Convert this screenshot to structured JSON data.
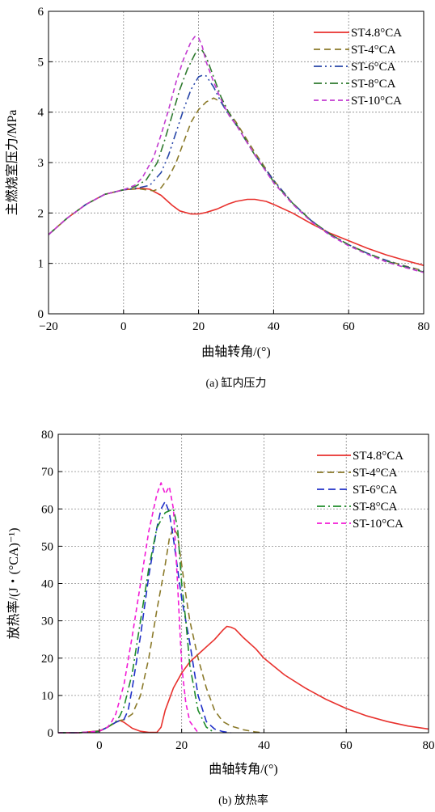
{
  "chart_data": [
    {
      "type": "line",
      "caption": "(a) 缸内压力",
      "xlabel": "曲轴转角/(°)",
      "ylabel": "主燃烧室压力/MPa",
      "xlim": [
        -20,
        80
      ],
      "ylim": [
        0,
        6
      ],
      "xticks": [
        "−20",
        "0",
        "20",
        "40",
        "60",
        "80"
      ],
      "yticks": [
        "0",
        "1",
        "2",
        "3",
        "4",
        "5",
        "6"
      ],
      "grid": true,
      "legend": "top-right",
      "series": [
        {
          "name": "ST4.8°CA",
          "color": "#e8312d",
          "dash": "",
          "x": [
            -20,
            -15,
            -10,
            -5,
            0,
            3,
            5,
            7,
            10,
            13,
            15,
            18,
            20,
            22,
            25,
            28,
            30,
            33,
            35,
            38,
            40,
            45,
            50,
            55,
            60,
            65,
            70,
            75,
            80
          ],
          "y": [
            1.57,
            1.9,
            2.17,
            2.37,
            2.46,
            2.48,
            2.49,
            2.47,
            2.35,
            2.15,
            2.04,
            1.98,
            1.98,
            2.01,
            2.08,
            2.18,
            2.23,
            2.27,
            2.27,
            2.23,
            2.17,
            2.0,
            1.79,
            1.6,
            1.45,
            1.3,
            1.17,
            1.06,
            0.96
          ]
        },
        {
          "name": "ST-4°CA",
          "color": "#8b7a2a",
          "dash": "8,5",
          "x": [
            -20,
            -15,
            -10,
            -5,
            0,
            4,
            8,
            10,
            12,
            14,
            16,
            18,
            20,
            22,
            24,
            26,
            28,
            30,
            35,
            40,
            45,
            50,
            55,
            60,
            65,
            70,
            75,
            80
          ],
          "y": [
            1.57,
            1.9,
            2.17,
            2.37,
            2.46,
            2.48,
            2.44,
            2.5,
            2.7,
            3.0,
            3.4,
            3.8,
            4.05,
            4.2,
            4.28,
            4.2,
            4.0,
            3.8,
            3.2,
            2.65,
            2.2,
            1.85,
            1.58,
            1.37,
            1.2,
            1.06,
            0.95,
            0.85
          ]
        },
        {
          "name": "ST-6°CA",
          "color": "#2846a8",
          "dash": "10,4,2,4,2,4",
          "x": [
            -20,
            -15,
            -10,
            -5,
            0,
            4,
            7,
            10,
            12,
            14,
            16,
            18,
            20,
            21,
            22,
            24,
            26,
            28,
            30,
            35,
            40,
            45,
            50,
            55,
            60,
            65,
            70,
            75,
            80
          ],
          "y": [
            1.57,
            1.9,
            2.17,
            2.37,
            2.46,
            2.5,
            2.55,
            2.8,
            3.15,
            3.6,
            4.05,
            4.45,
            4.7,
            4.73,
            4.72,
            4.5,
            4.2,
            3.95,
            3.75,
            3.15,
            2.65,
            2.2,
            1.85,
            1.58,
            1.37,
            1.2,
            1.06,
            0.94,
            0.84
          ]
        },
        {
          "name": "ST-8°CA",
          "color": "#2e7a2e",
          "dash": "10,4,2,4",
          "x": [
            -20,
            -15,
            -10,
            -5,
            0,
            3,
            6,
            9,
            11,
            13,
            15,
            17,
            19,
            20,
            21,
            22,
            24,
            26,
            28,
            30,
            35,
            40,
            45,
            50,
            55,
            60,
            65,
            70,
            75,
            80
          ],
          "y": [
            1.57,
            1.9,
            2.17,
            2.37,
            2.46,
            2.52,
            2.65,
            3.0,
            3.45,
            3.95,
            4.45,
            4.85,
            5.15,
            5.25,
            5.22,
            5.1,
            4.7,
            4.3,
            4.0,
            3.77,
            3.15,
            2.62,
            2.2,
            1.85,
            1.58,
            1.37,
            1.2,
            1.05,
            0.93,
            0.83
          ]
        },
        {
          "name": "ST-10°CA",
          "color": "#c23bd0",
          "dash": "6,4",
          "x": [
            -20,
            -15,
            -10,
            -5,
            0,
            3,
            5,
            8,
            10,
            12,
            14,
            16,
            18,
            19,
            20,
            21,
            22,
            24,
            26,
            28,
            30,
            35,
            40,
            45,
            50,
            55,
            60,
            65,
            70,
            75,
            80
          ],
          "y": [
            1.57,
            1.9,
            2.17,
            2.37,
            2.46,
            2.55,
            2.7,
            3.1,
            3.55,
            4.05,
            4.6,
            5.05,
            5.4,
            5.5,
            5.47,
            5.3,
            5.0,
            4.6,
            4.25,
            3.95,
            3.75,
            3.15,
            2.6,
            2.18,
            1.83,
            1.56,
            1.35,
            1.18,
            1.03,
            0.92,
            0.82
          ]
        }
      ]
    },
    {
      "type": "line",
      "caption": "(b) 放热率",
      "xlabel": "曲轴转角/(°)",
      "ylabel": "放热率/(J・(°CA)⁻¹)",
      "xlim": [
        -10,
        80
      ],
      "ylim": [
        0,
        80
      ],
      "xticks": [
        "0",
        "20",
        "40",
        "60",
        "80"
      ],
      "xtick_values": [
        0,
        20,
        40,
        60,
        80
      ],
      "yticks": [
        "0",
        "10",
        "20",
        "30",
        "40",
        "50",
        "60",
        "70",
        "80"
      ],
      "grid": true,
      "legend": "top-right",
      "series": [
        {
          "name": "ST4.8°CA",
          "color": "#e8312d",
          "dash": "",
          "x": [
            -10,
            -5,
            0,
            2,
            4,
            5,
            6,
            8,
            10,
            12,
            14,
            15,
            16,
            18,
            20,
            22,
            25,
            28,
            30,
            31,
            32,
            33,
            35,
            38,
            40,
            45,
            50,
            55,
            60,
            65,
            70,
            75,
            80
          ],
          "y": [
            0,
            0,
            0.5,
            1.5,
            2.8,
            3.3,
            2.8,
            1.2,
            0.4,
            0.1,
            0.1,
            1.5,
            6,
            12,
            16,
            19,
            22,
            25,
            27.5,
            28.5,
            28.3,
            27.8,
            25.5,
            22.5,
            20,
            15.5,
            12,
            9,
            6.5,
            4.5,
            3,
            1.8,
            1
          ]
        },
        {
          "name": "ST-4°CA",
          "color": "#8b7a2a",
          "dash": "8,5",
          "x": [
            -10,
            -5,
            0,
            2,
            4,
            5,
            6,
            8,
            10,
            12,
            14,
            16,
            17,
            18,
            19,
            20,
            21,
            22,
            24,
            26,
            28,
            30,
            32,
            35,
            38,
            40
          ],
          "y": [
            0,
            0,
            0.4,
            1.5,
            2.8,
            3.3,
            3.5,
            5,
            10,
            20,
            33,
            45,
            52,
            55,
            53,
            45,
            37,
            30,
            20,
            12,
            6,
            3,
            1.8,
            0.8,
            0.2,
            0
          ]
        },
        {
          "name": "ST-6°CA",
          "color": "#2030c8",
          "dash": "9,5",
          "x": [
            -10,
            -5,
            0,
            2,
            4,
            5,
            6,
            7,
            8,
            10,
            12,
            14,
            15,
            16,
            17,
            18,
            19,
            20,
            21,
            22,
            24,
            26,
            28,
            30,
            32
          ],
          "y": [
            0,
            0,
            0.4,
            1.5,
            2.8,
            3.3,
            3.6,
            6,
            12,
            26,
            42,
            55,
            60,
            62,
            59,
            52,
            44,
            36,
            30,
            24,
            10,
            3,
            1,
            0.3,
            0
          ]
        },
        {
          "name": "ST-8°CA",
          "color": "#1f8c2a",
          "dash": "10,4,2,4",
          "x": [
            -10,
            -5,
            0,
            2,
            4,
            5,
            6,
            8,
            10,
            12,
            14,
            16,
            18,
            19,
            20,
            21,
            22,
            24,
            26,
            28
          ],
          "y": [
            0,
            0,
            0.4,
            1.5,
            3,
            4.5,
            7,
            16,
            30,
            44,
            55,
            59,
            60,
            55,
            40,
            30,
            18,
            6,
            1.5,
            0
          ]
        },
        {
          "name": "ST-10°CA",
          "color": "#f21bd6",
          "dash": "6,4",
          "x": [
            -10,
            -5,
            0,
            2,
            3,
            4,
            6,
            8,
            10,
            12,
            14,
            15,
            16,
            17,
            18,
            19,
            20,
            21,
            22,
            24
          ],
          "y": [
            0,
            0,
            0.4,
            1.5,
            3,
            5,
            13,
            26,
            40,
            54,
            64,
            67,
            64,
            66,
            60,
            40,
            18,
            8,
            3,
            0
          ]
        }
      ]
    }
  ]
}
